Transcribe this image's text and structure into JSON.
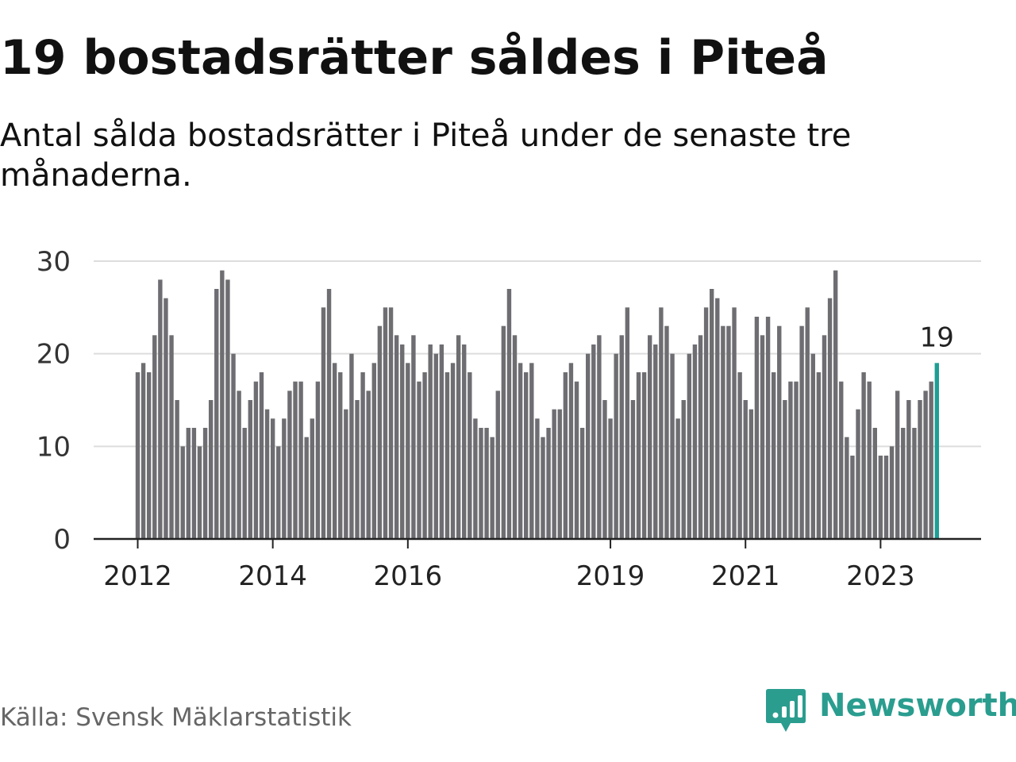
{
  "title": "19 bostadsrätter såldes i Piteå",
  "subtitle": "Antal sålda bostadsrätter i Piteå under de senaste tre månaderna.",
  "source": "Källa: Svensk Mäklarstatistik",
  "brand": {
    "name": "Newsworthy",
    "icon": "newsworthy-logo-icon",
    "color": "#2a9d8f"
  },
  "colors": {
    "bar": "#6e6e72",
    "highlight": "#1e9e95",
    "grid": "#dddddd",
    "axis": "#222222"
  },
  "chart_data": {
    "type": "bar",
    "title": "19 bostadsrätter såldes i Piteå",
    "xlabel": "",
    "ylabel": "",
    "ylim": [
      0,
      30
    ],
    "yticks": [
      0,
      10,
      20,
      30
    ],
    "grid": true,
    "start": "2012-01",
    "xticks": [
      {
        "label": "2012",
        "index": 0
      },
      {
        "label": "2014",
        "index": 24
      },
      {
        "label": "2016",
        "index": 48
      },
      {
        "label": "2019",
        "index": 84
      },
      {
        "label": "2021",
        "index": 108
      },
      {
        "label": "2023",
        "index": 132
      }
    ],
    "values": [
      18,
      19,
      18,
      22,
      28,
      26,
      22,
      15,
      10,
      12,
      12,
      10,
      12,
      15,
      27,
      29,
      28,
      20,
      16,
      12,
      15,
      17,
      18,
      14,
      13,
      10,
      13,
      16,
      17,
      17,
      11,
      13,
      17,
      25,
      27,
      19,
      18,
      14,
      20,
      15,
      18,
      16,
      19,
      23,
      25,
      25,
      22,
      21,
      19,
      22,
      17,
      18,
      21,
      20,
      21,
      18,
      19,
      22,
      21,
      18,
      13,
      12,
      12,
      11,
      16,
      23,
      27,
      22,
      19,
      18,
      19,
      13,
      11,
      12,
      14,
      14,
      18,
      19,
      17,
      12,
      20,
      21,
      22,
      15,
      13,
      20,
      22,
      25,
      15,
      18,
      18,
      22,
      21,
      25,
      23,
      20,
      13,
      15,
      20,
      21,
      22,
      25,
      27,
      26,
      23,
      23,
      25,
      18,
      15,
      14,
      24,
      22,
      24,
      18,
      23,
      15,
      17,
      17,
      23,
      25,
      20,
      18,
      22,
      26,
      29,
      17,
      11,
      9,
      14,
      18,
      17,
      12,
      9,
      9,
      10,
      16,
      12,
      15,
      12,
      15,
      16,
      17,
      19
    ],
    "highlight": {
      "index": 142,
      "label": "19"
    }
  }
}
